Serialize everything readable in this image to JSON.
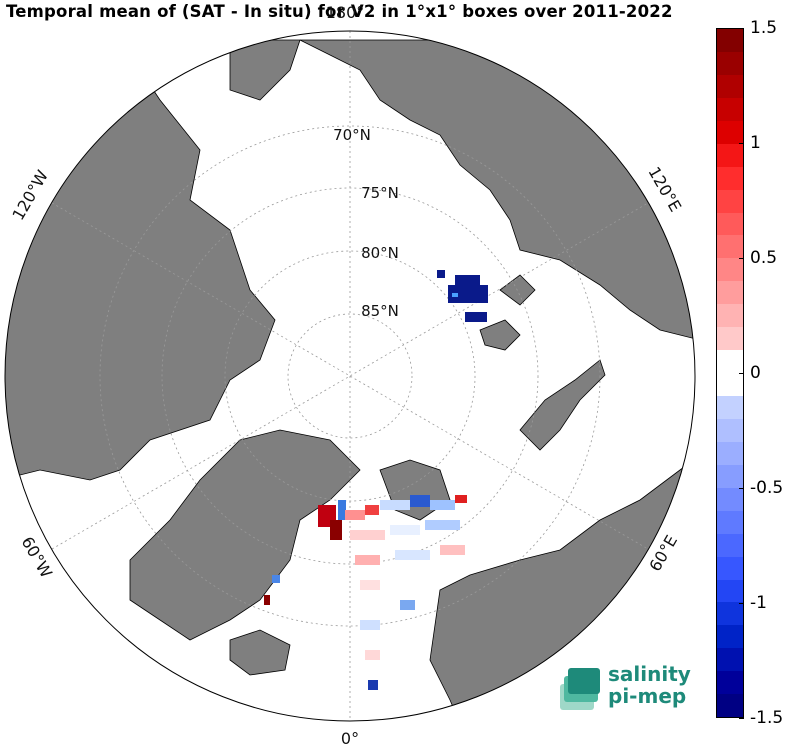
{
  "title": "Temporal mean of (SAT - In situ) for V2 in 1°x1° boxes over 2011-2022",
  "map": {
    "projection": "north-polar-stereographic",
    "latitude_labels": [
      "70°N",
      "75°N",
      "80°N",
      "85°N"
    ],
    "longitude_labels": {
      "top": "180°",
      "bottom": "0°",
      "upper_left": "120°W",
      "upper_right": "120°E",
      "lower_left": "60°W",
      "lower_right": "60°E"
    },
    "colors": {
      "land": "#7f7f7f",
      "ocean": "#ffffff",
      "coast": "#000000",
      "grid": "#9a9a9a"
    }
  },
  "colorbar": {
    "min": -1.5,
    "max": 1.5,
    "tick_labels": [
      "1.5",
      "1",
      "0.5",
      "0",
      "-0.5",
      "-1",
      "-1.5"
    ],
    "tick_values": [
      1.5,
      1,
      0.5,
      0,
      -0.5,
      -1,
      -1.5
    ],
    "colormap": "blue-white-red"
  },
  "logo": {
    "line1": "salinity",
    "line2": "pi-mep"
  }
}
